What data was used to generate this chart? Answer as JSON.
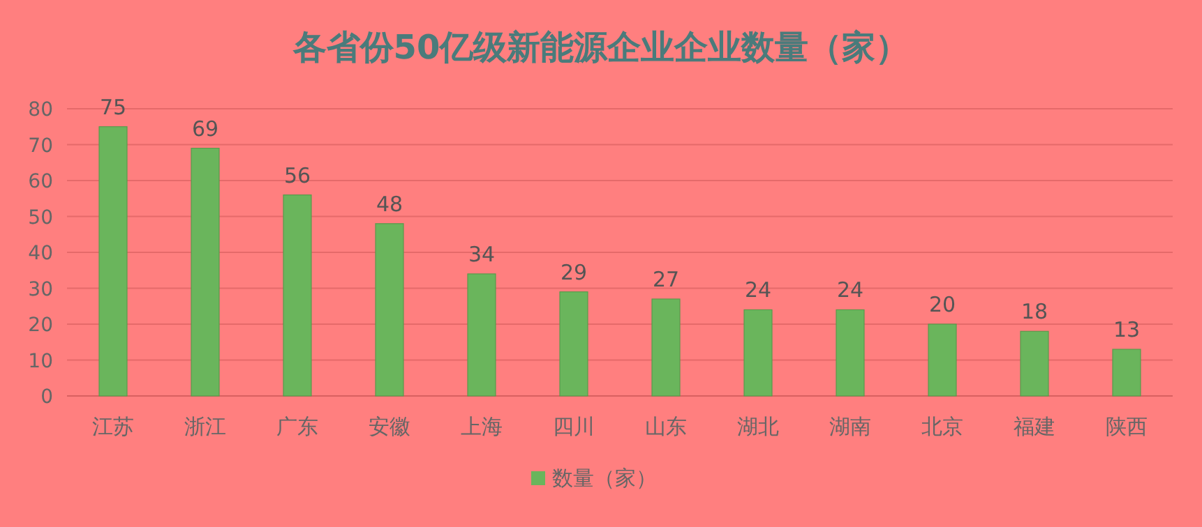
{
  "chart_data": {
    "type": "bar",
    "title": "各省份50亿级新能源企业企业数量（家）",
    "categories": [
      "江苏",
      "浙江",
      "广东",
      "安徽",
      "上海",
      "四川",
      "山东",
      "湖北",
      "湖南",
      "北京",
      "福建",
      "陕西"
    ],
    "series": [
      {
        "name": "数量（家）",
        "color": "#6ab55c",
        "values": [
          75,
          69,
          56,
          48,
          34,
          29,
          27,
          24,
          24,
          20,
          18,
          13
        ]
      }
    ],
    "ylim": [
      0,
      80
    ],
    "yticks": [
      0,
      10,
      20,
      30,
      40,
      50,
      60,
      70,
      80
    ],
    "grid": "y",
    "data_labels": true,
    "legend": "bottom"
  }
}
